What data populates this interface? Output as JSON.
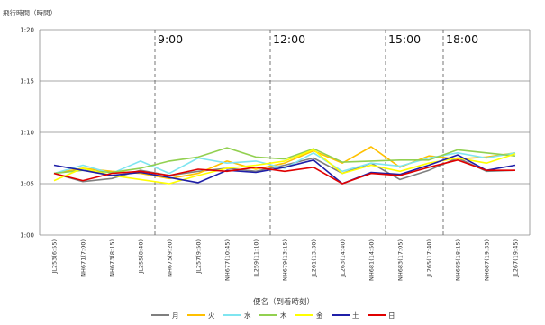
{
  "chart_data": {
    "type": "line",
    "ylabel": "飛行時間（時間）",
    "xlabel": "便名（到着時刻）",
    "y_unit_minutes": true,
    "ylim": [
      60,
      80
    ],
    "yticks": [
      {
        "value": 60,
        "label": "1:00"
      },
      {
        "value": 65,
        "label": "1:05"
      },
      {
        "value": 70,
        "label": "1:10"
      },
      {
        "value": 75,
        "label": "1:15"
      },
      {
        "value": 80,
        "label": "1:20"
      }
    ],
    "categories": [
      "JL253(6:55)",
      "NH671(7:00)",
      "NH673(8:15)",
      "JL255(8:40)",
      "NH675(9:20)",
      "JL257(9:50)",
      "NH677(10:45)",
      "JL259(11:10)",
      "NH679(13:15)",
      "JL261(13:30)",
      "JL263(14:40)",
      "NH681(14:50)",
      "NH683(17:05)",
      "JL265(17:40)",
      "NH685(18:15)",
      "NH687(19:35)",
      "JL267(19:45)"
    ],
    "annotations": [
      {
        "label": "9:00",
        "after_index": 3
      },
      {
        "label": "12:00",
        "after_index": 7
      },
      {
        "label": "15:00",
        "after_index": 11
      },
      {
        "label": "18:00",
        "after_index": 13
      }
    ],
    "grid": true,
    "legend": "bottom",
    "series": [
      {
        "name": "月",
        "color": "#7f7f7f",
        "values": [
          66.0,
          65.2,
          65.5,
          66.3,
          65.8,
          66.2,
          66.5,
          66.2,
          66.8,
          67.5,
          66.0,
          67.0,
          65.4,
          66.3,
          67.5,
          66.2,
          66.3
        ]
      },
      {
        "name": "火",
        "color": "#ffc000",
        "values": [
          66.0,
          66.5,
          66.2,
          66.0,
          65.5,
          66.0,
          67.2,
          66.4,
          67.0,
          68.2,
          67.0,
          68.6,
          66.6,
          67.7,
          67.4,
          67.6,
          68.0
        ]
      },
      {
        "name": "水",
        "color": "#7fe5f0",
        "values": [
          66.0,
          66.8,
          66.0,
          67.2,
          66.0,
          67.5,
          67.0,
          67.2,
          66.5,
          68.0,
          66.2,
          67.0,
          66.7,
          67.5,
          68.0,
          67.5,
          68.0
        ]
      },
      {
        "name": "木",
        "color": "#92d050",
        "values": [
          66.0,
          66.3,
          66.1,
          66.5,
          67.2,
          67.6,
          68.5,
          67.6,
          67.4,
          68.4,
          67.1,
          67.2,
          67.3,
          67.3,
          68.3,
          68.0,
          67.7
        ]
      },
      {
        "name": "金",
        "color": "#ffff00",
        "values": [
          65.3,
          66.5,
          65.8,
          65.4,
          65.0,
          65.8,
          66.5,
          66.8,
          67.2,
          68.3,
          66.0,
          66.8,
          66.2,
          67.0,
          67.5,
          67.0,
          67.9
        ]
      },
      {
        "name": "土",
        "color": "#1f1fa8",
        "values": [
          66.8,
          66.3,
          65.8,
          66.1,
          65.6,
          65.1,
          66.3,
          66.1,
          66.6,
          67.3,
          65.0,
          66.1,
          65.9,
          66.8,
          67.8,
          66.3,
          66.8
        ]
      },
      {
        "name": "日",
        "color": "#e00000",
        "values": [
          66.0,
          65.3,
          66.0,
          66.2,
          65.8,
          66.4,
          66.2,
          66.6,
          66.2,
          66.6,
          65.0,
          66.0,
          65.8,
          66.6,
          67.3,
          66.3,
          66.3
        ]
      }
    ]
  }
}
